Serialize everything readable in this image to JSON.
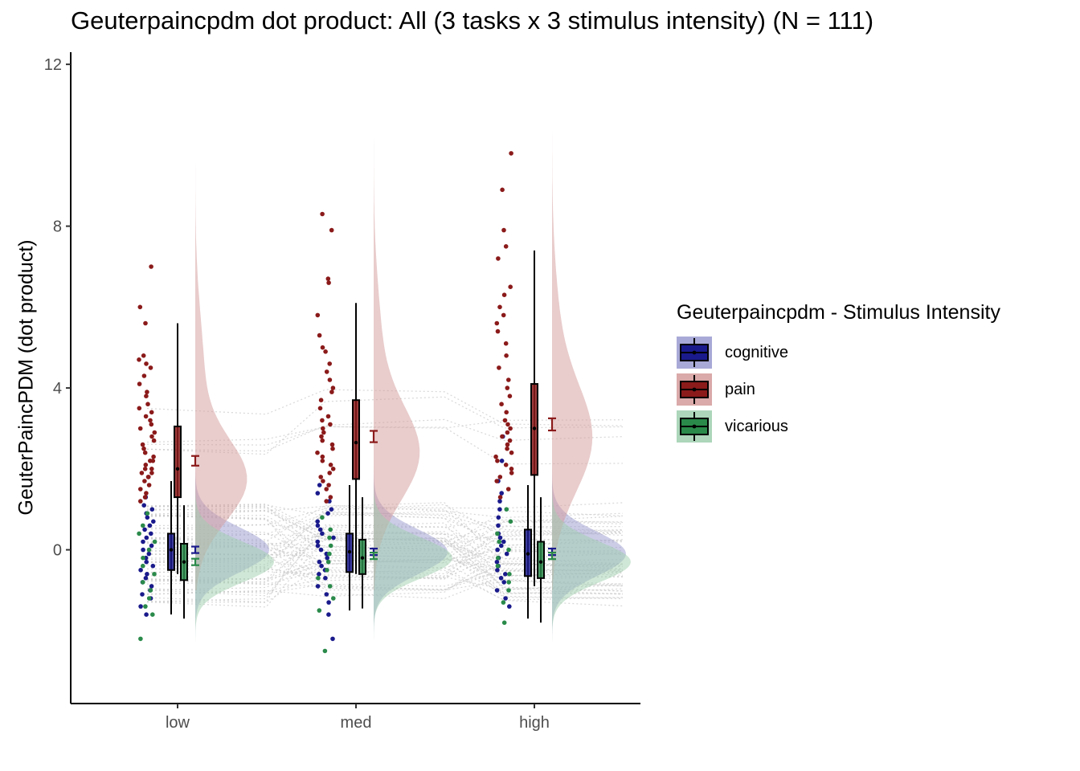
{
  "title": "Geuterpaincpdm dot product: All (3 tasks x 3 stimulus intensity) (N = 111)",
  "chart_data": {
    "type": "raincloud",
    "title": "Geuterpaincpdm dot product: All (3 tasks x 3 stimulus intensity) (N = 111)",
    "xlabel": "",
    "ylabel": "GeuterPaincPDM  (dot product)",
    "categories": [
      "low",
      "med",
      "high"
    ],
    "yticks": [
      0,
      4,
      8,
      12
    ],
    "ylim": [
      -3.8,
      12.3
    ],
    "grid": false,
    "legend": {
      "title": "Geuterpaincpdm - Stimulus Intensity",
      "position": "right"
    },
    "series": [
      {
        "name": "cognitive",
        "color": "#1a1a8c",
        "fill": "#9a9ad0",
        "mean": [
          0.0,
          -0.05,
          -0.05
        ],
        "se": [
          0.08,
          0.08,
          0.08
        ],
        "box": [
          {
            "whisker_low": -1.6,
            "q1": -0.5,
            "median": 0.0,
            "q3": 0.4,
            "whisker_high": 1.7
          },
          {
            "whisker_low": -1.5,
            "q1": -0.55,
            "median": -0.05,
            "q3": 0.4,
            "whisker_high": 1.6
          },
          {
            "whisker_low": -1.7,
            "q1": -0.65,
            "median": -0.1,
            "q3": 0.5,
            "whisker_high": 1.6
          }
        ],
        "density_extent": [
          -2.3,
          2.4
        ]
      },
      {
        "name": "pain",
        "color": "#8b1a1a",
        "fill": "#d49a9a",
        "mean": [
          2.2,
          2.8,
          3.1
        ],
        "se": [
          0.12,
          0.14,
          0.15
        ],
        "box": [
          {
            "whisker_low": -0.6,
            "q1": 1.3,
            "median": 2.0,
            "q3": 3.05,
            "whisker_high": 5.6
          },
          {
            "whisker_low": -0.6,
            "q1": 1.75,
            "median": 2.65,
            "q3": 3.7,
            "whisker_high": 6.1
          },
          {
            "whisker_low": -0.9,
            "q1": 1.85,
            "median": 3.0,
            "q3": 4.1,
            "whisker_high": 7.4
          }
        ],
        "density_extent": [
          -1.0,
          11.6
        ]
      },
      {
        "name": "vicarious",
        "color": "#2a8a4a",
        "fill": "#9fcfae",
        "mean": [
          -0.3,
          -0.15,
          -0.15
        ],
        "se": [
          0.08,
          0.08,
          0.08
        ],
        "box": [
          {
            "whisker_low": -1.7,
            "q1": -0.75,
            "median": -0.3,
            "q3": 0.15,
            "whisker_high": 1.1
          },
          {
            "whisker_low": -1.45,
            "q1": -0.6,
            "median": -0.2,
            "q3": 0.25,
            "whisker_high": 1.3
          },
          {
            "whisker_low": -1.8,
            "q1": -0.7,
            "median": -0.3,
            "q3": 0.2,
            "whisker_high": 1.3
          }
        ],
        "density_extent": [
          -2.8,
          2.2
        ]
      }
    ],
    "raw_points": {
      "low": {
        "pain": [
          7.0,
          6.0,
          5.6,
          4.8,
          4.7,
          4.6,
          4.5,
          4.3,
          4.1,
          3.9,
          3.8,
          3.6,
          3.5,
          3.4,
          3.3,
          3.2,
          3.1,
          3.0,
          2.9,
          2.8,
          2.7,
          2.6,
          2.5,
          2.4,
          2.3,
          2.2,
          2.2,
          2.1,
          2.0,
          2.0,
          1.9,
          1.9,
          1.8,
          1.8,
          1.7,
          1.6,
          1.5,
          1.4,
          1.3,
          1.2
        ],
        "cognitive": [
          1.3,
          1.1,
          1.0,
          0.9,
          0.8,
          0.7,
          0.6,
          0.5,
          0.4,
          0.3,
          0.2,
          0.1,
          0.0,
          -0.1,
          -0.2,
          -0.3,
          -0.4,
          -0.5,
          -0.6,
          -0.7,
          -0.8,
          -0.9,
          -1.0,
          -1.1,
          -1.2,
          -1.4,
          -1.6
        ],
        "vicarious": [
          0.9,
          0.6,
          0.4,
          0.2,
          0.0,
          -0.2,
          -0.4,
          -0.6,
          -0.8,
          -1.0,
          -1.2,
          -1.4,
          -1.6,
          -2.2
        ]
      },
      "med": {
        "pain": [
          8.3,
          7.9,
          6.7,
          6.6,
          5.8,
          5.3,
          5.0,
          4.9,
          4.6,
          4.4,
          4.2,
          4.0,
          3.9,
          3.7,
          3.5,
          3.3,
          3.2,
          3.1,
          3.0,
          2.9,
          2.8,
          2.7,
          2.6,
          2.5,
          2.4,
          2.3,
          2.2,
          2.1,
          2.0,
          1.9,
          1.8,
          1.7,
          1.6,
          1.5,
          1.3,
          1.2
        ],
        "cognitive": [
          1.6,
          1.4,
          1.2,
          1.0,
          0.9,
          0.7,
          0.6,
          0.5,
          0.4,
          0.3,
          0.2,
          0.1,
          0.0,
          -0.1,
          -0.2,
          -0.3,
          -0.4,
          -0.5,
          -0.6,
          -0.7,
          -0.9,
          -1.1,
          -1.3,
          -1.6,
          -2.2
        ],
        "vicarious": [
          0.8,
          0.5,
          0.3,
          0.1,
          -0.1,
          -0.3,
          -0.5,
          -0.7,
          -0.9,
          -1.2,
          -1.5,
          -2.5
        ]
      },
      "high": {
        "pain": [
          9.8,
          8.9,
          7.9,
          7.5,
          7.2,
          6.5,
          6.3,
          6.0,
          5.8,
          5.6,
          5.4,
          5.1,
          4.8,
          4.5,
          4.2,
          4.0,
          3.8,
          3.6,
          3.4,
          3.2,
          3.1,
          3.0,
          2.9,
          2.8,
          2.7,
          2.6,
          2.5,
          2.4,
          2.3,
          2.2,
          2.1,
          2.0,
          1.9,
          1.8,
          1.7,
          1.5,
          1.3
        ],
        "cognitive": [
          2.8,
          2.2,
          1.7,
          1.4,
          1.2,
          1.0,
          0.8,
          0.6,
          0.4,
          0.3,
          0.2,
          0.1,
          0.0,
          -0.1,
          -0.2,
          -0.3,
          -0.4,
          -0.5,
          -0.6,
          -0.7,
          -0.8,
          -1.0,
          -1.2,
          -1.4
        ],
        "vicarious": [
          1.0,
          0.7,
          0.4,
          0.2,
          0.0,
          -0.2,
          -0.4,
          -0.6,
          -0.8,
          -1.0,
          -1.3,
          -1.8
        ]
      }
    }
  }
}
